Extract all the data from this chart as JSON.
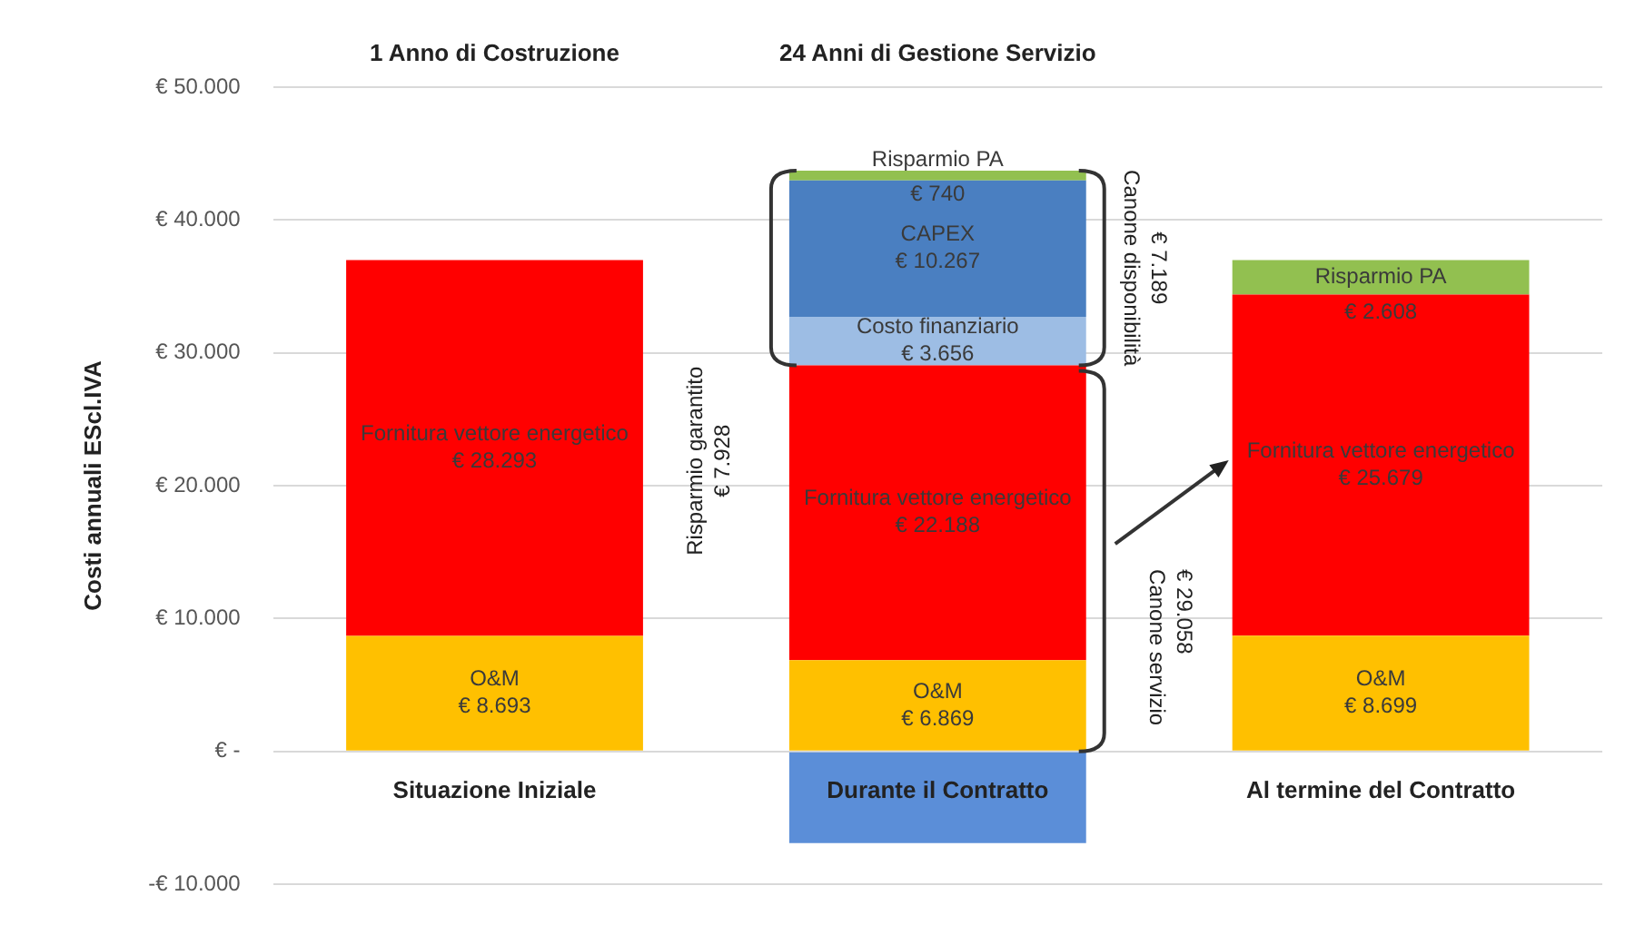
{
  "chart_data": {
    "type": "bar",
    "stacked": true,
    "ylabel": "Costi annuali EScl.IVA",
    "categories": [
      "Situazione Iniziale",
      "Durante il Contratto",
      "Al termine del Contratto"
    ],
    "series": [
      {
        "name": "O&M",
        "color": "#ffc000",
        "values": [
          8693,
          6869,
          8699
        ],
        "value_labels": [
          "€ 8.693",
          "€ 6.869",
          "€ 8.699"
        ]
      },
      {
        "name": "Fornitura vettore energetico",
        "color": "#ff0000",
        "values": [
          28293,
          22188,
          25679
        ],
        "value_labels": [
          "€ 28.293",
          "€ 22.188",
          "€ 25.679"
        ]
      },
      {
        "name": "Costo finanziario",
        "color": "#9dbde4",
        "values": [
          null,
          3656,
          null
        ],
        "value_labels": [
          null,
          "€ 3.656",
          null
        ]
      },
      {
        "name": "CAPEX",
        "color": "#4a7fc1",
        "values": [
          null,
          10267,
          null
        ],
        "value_labels": [
          null,
          "€ 10.267",
          null
        ]
      },
      {
        "name": "Risparmio PA",
        "color": "#92c050",
        "values": [
          null,
          740,
          2608
        ],
        "value_labels": [
          null,
          "€ 740",
          "€ 2.608"
        ]
      },
      {
        "color": "#5b8ed8",
        "values": [
          null,
          -6900,
          null
        ]
      }
    ],
    "ylim": [
      -10000,
      50000
    ],
    "yticks": [
      {
        "value": -10000,
        "label": "-€ 10.000"
      },
      {
        "value": 0,
        "label": "€ -"
      },
      {
        "value": 10000,
        "label": "€ 10.000"
      },
      {
        "value": 20000,
        "label": "€ 20.000"
      },
      {
        "value": 30000,
        "label": "€ 30.000"
      },
      {
        "value": 40000,
        "label": "€ 40.000"
      },
      {
        "value": 50000,
        "label": "€ 50.000"
      }
    ],
    "grid": "y",
    "legend": false,
    "annotations": [
      "1 Anno di Costruzione",
      "24 Anni di Gestione Servizio",
      "Risparmio garantito\n€ 7.928",
      "Canone disponibilità\n€ 7.189",
      "Canone servizio\n€ 29.058"
    ]
  }
}
